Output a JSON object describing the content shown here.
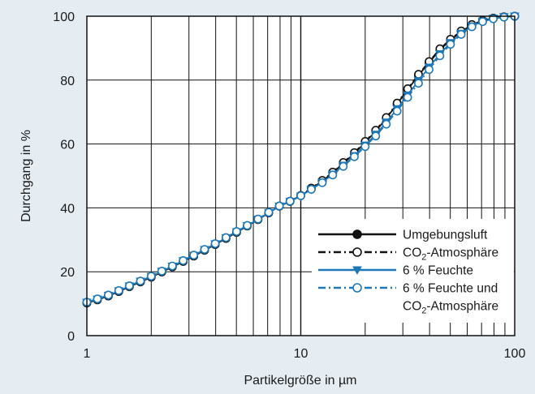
{
  "chart_data": {
    "type": "line",
    "xlabel": "Partikelgröße in µm",
    "ylabel": "Durchgang in %",
    "xscale": "log",
    "xlim": [
      1,
      100
    ],
    "ylim": [
      0,
      100
    ],
    "xticks": [
      1,
      10,
      100
    ],
    "xtick_labels": [
      "1",
      "10",
      "100"
    ],
    "yticks": [
      0,
      20,
      40,
      60,
      80,
      100
    ],
    "ytick_labels": [
      "0",
      "20",
      "40",
      "60",
      "80",
      "100"
    ],
    "grid": true,
    "legend_position": "bottom-right",
    "colors": {
      "black": "#111111",
      "blue": "#1e78b8",
      "background": "#e5ecf2",
      "plot": "#ffffff"
    },
    "series": [
      {
        "name_main": "Umgebungsluft",
        "name_sub": "",
        "name_rest": "",
        "name_line2": "",
        "name_line2_sub": "",
        "name_line2_rest": "",
        "color": "#111111",
        "line": "solid",
        "marker": "filled-circle",
        "x": [
          1,
          1.12,
          1.26,
          1.41,
          1.58,
          1.78,
          2,
          2.24,
          2.51,
          2.82,
          3.16,
          3.55,
          3.98,
          4.47,
          5.01,
          5.62,
          6.31,
          7.08,
          7.94,
          8.91,
          10,
          11.2,
          12.6,
          14.1,
          15.8,
          17.8,
          20,
          22.4,
          25.1,
          28.2,
          31.6,
          35.5,
          39.8,
          44.7,
          50.1,
          56.2,
          63.1,
          70.8,
          79.4,
          89.1,
          100
        ],
        "y": [
          10.2,
          11.2,
          12.4,
          13.8,
          15.3,
          16.8,
          18.3,
          19.9,
          21.5,
          23.2,
          24.9,
          26.7,
          28.5,
          30.4,
          32.3,
          34.3,
          36.3,
          38.4,
          40.5,
          42.0,
          43.8,
          46.0,
          48.4,
          51.0,
          54.0,
          57.0,
          60.5,
          64.0,
          68.0,
          72.5,
          77.0,
          81.5,
          85.5,
          89.5,
          92.5,
          95.2,
          97.3,
          98.6,
          99.4,
          99.8,
          100
        ]
      },
      {
        "name_main": "CO",
        "name_sub": "2",
        "name_rest": "-Atmosphäre",
        "name_line2": "",
        "name_line2_sub": "",
        "name_line2_rest": "",
        "color": "#111111",
        "line": "dashdot",
        "marker": "open-circle",
        "x": [
          1,
          1.12,
          1.26,
          1.41,
          1.58,
          1.78,
          2,
          2.24,
          2.51,
          2.82,
          3.16,
          3.55,
          3.98,
          4.47,
          5.01,
          5.62,
          6.31,
          7.08,
          7.94,
          8.91,
          10,
          11.2,
          12.6,
          14.1,
          15.8,
          17.8,
          20,
          22.4,
          25.1,
          28.2,
          31.6,
          35.5,
          39.8,
          44.7,
          50.1,
          56.2,
          63.1,
          70.8,
          79.4,
          89.1,
          100
        ],
        "y": [
          10.3,
          11.3,
          12.5,
          13.9,
          15.4,
          16.9,
          18.4,
          20.0,
          21.6,
          23.3,
          25.0,
          26.8,
          28.6,
          30.5,
          32.4,
          34.4,
          36.4,
          38.5,
          40.6,
          42.1,
          43.9,
          46.2,
          48.6,
          51.2,
          54.2,
          57.3,
          60.8,
          64.3,
          68.3,
          72.8,
          77.3,
          81.8,
          85.8,
          89.8,
          92.8,
          95.4,
          97.4,
          98.7,
          99.4,
          99.8,
          100
        ]
      },
      {
        "name_main": "6 % Feuchte",
        "name_sub": "",
        "name_rest": "",
        "name_line2": "",
        "name_line2_sub": "",
        "name_line2_rest": "",
        "color": "#1e78b8",
        "line": "solid",
        "marker": "filled-triangle-down",
        "x": [
          1,
          1.12,
          1.26,
          1.41,
          1.58,
          1.78,
          2,
          2.24,
          2.51,
          2.82,
          3.16,
          3.55,
          3.98,
          4.47,
          5.01,
          5.62,
          6.31,
          7.08,
          7.94,
          8.91,
          10,
          11.2,
          12.6,
          14.1,
          15.8,
          17.8,
          20,
          22.4,
          25.1,
          28.2,
          31.6,
          35.5,
          39.8,
          44.7,
          50.1,
          56.2,
          63.1,
          70.8,
          79.4,
          89.1,
          100
        ],
        "y": [
          10.4,
          11.4,
          12.6,
          14.0,
          15.5,
          17.0,
          18.5,
          20.1,
          21.7,
          23.4,
          25.1,
          26.9,
          28.7,
          30.6,
          32.5,
          34.4,
          36.4,
          38.5,
          40.5,
          42.0,
          43.7,
          45.8,
          48.0,
          50.5,
          53.3,
          56.3,
          59.6,
          63.0,
          66.8,
          71.0,
          75.3,
          79.8,
          84.0,
          88.2,
          91.7,
          94.6,
          96.9,
          98.4,
          99.3,
          99.8,
          100
        ]
      },
      {
        "name_main": "6 % Feuchte und",
        "name_sub": "",
        "name_rest": "",
        "name_line2": "CO",
        "name_line2_sub": "2",
        "name_line2_rest": "-Atmosphäre",
        "color": "#1e78b8",
        "line": "dashdot",
        "marker": "open-circle",
        "x": [
          1,
          1.12,
          1.26,
          1.41,
          1.58,
          1.78,
          2,
          2.24,
          2.51,
          2.82,
          3.16,
          3.55,
          3.98,
          4.47,
          5.01,
          5.62,
          6.31,
          7.08,
          7.94,
          8.91,
          10,
          11.2,
          12.6,
          14.1,
          15.8,
          17.8,
          20,
          22.4,
          25.1,
          28.2,
          31.6,
          35.5,
          39.8,
          44.7,
          50.1,
          56.2,
          63.1,
          70.8,
          79.4,
          89.1,
          100
        ],
        "y": [
          10.5,
          11.5,
          12.7,
          14.1,
          15.6,
          17.1,
          18.6,
          20.2,
          21.8,
          23.5,
          25.2,
          27.0,
          28.8,
          30.7,
          32.6,
          34.5,
          36.5,
          38.6,
          40.6,
          42.1,
          43.8,
          45.8,
          47.9,
          50.3,
          53.0,
          56.0,
          59.2,
          62.5,
          66.2,
          70.3,
          74.6,
          79.0,
          83.3,
          87.6,
          91.2,
          94.3,
          96.7,
          98.3,
          99.2,
          99.7,
          100
        ]
      }
    ]
  }
}
